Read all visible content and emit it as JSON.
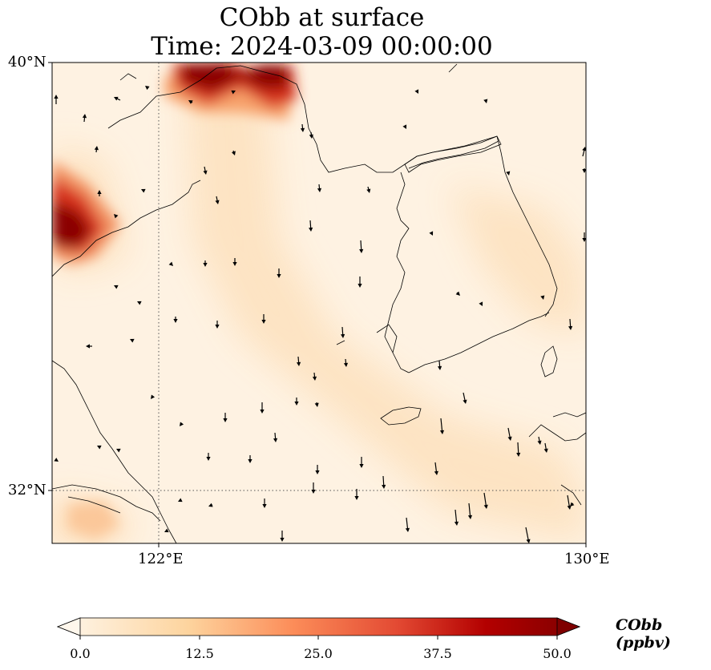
{
  "title": {
    "line1": "CObb at surface",
    "line2": "Time: 2024-03-09 00:00:00"
  },
  "axes": {
    "lat_labels": [
      "40°N",
      "32°N"
    ],
    "lon_labels": [
      "122°E",
      "130°E"
    ],
    "lon_range": [
      120,
      130
    ],
    "lat_range": [
      31,
      40
    ]
  },
  "colorbar": {
    "label": "CObb (ppbv)",
    "ticks": [
      "0.0",
      "12.5",
      "25.0",
      "37.5",
      "50.0"
    ],
    "colormap": "OrRd",
    "extend": "both",
    "range": [
      0,
      50
    ]
  },
  "colors": {
    "low": "#fff5e8",
    "mid": "#fcc58a",
    "high": "#d7301f",
    "max": "#7f0000"
  }
}
